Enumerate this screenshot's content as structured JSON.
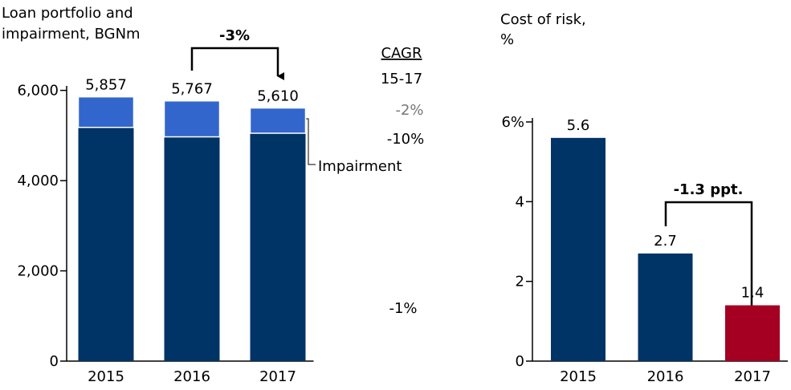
{
  "chart_data": [
    {
      "type": "bar",
      "stacked": true,
      "title": [
        "Loan portfolio and",
        "impairment, BGNm"
      ],
      "categories": [
        "2015",
        "2016",
        "2017"
      ],
      "series": [
        {
          "color": "#003366",
          "values": [
            5180,
            4970,
            5050
          ]
        },
        {
          "name": "Impairment",
          "color": "#3366cc",
          "values": [
            677,
            797,
            560
          ]
        }
      ],
      "totals": [
        5857,
        5767,
        5610
      ],
      "total_labels": [
        "5,857",
        "5,767",
        "5,610"
      ],
      "ylim": [
        0,
        6100
      ],
      "yticks": [
        0,
        {
          "value": 2000,
          "label": "2,000"
        },
        {
          "value": 4000,
          "label": "4,000"
        },
        {
          "value": 6000,
          "label": "6,000"
        }
      ],
      "change_label": "-3%",
      "cagr": {
        "header": "CAGR",
        "period": "15-17",
        "total": "-2%",
        "impairment": "-10%",
        "loans": "-1%"
      }
    },
    {
      "type": "bar",
      "title": [
        "Cost of risk,",
        "%"
      ],
      "categories": [
        "2015",
        "2016",
        "2017"
      ],
      "values": [
        5.6,
        2.7,
        1.4
      ],
      "colors": [
        "#003366",
        "#003366",
        "#a50021"
      ],
      "ylim": [
        0,
        6.1
      ],
      "yticks": [
        0,
        2,
        4,
        {
          "value": 6,
          "label": "6%"
        }
      ],
      "change_label": "-1.3 ppt."
    }
  ]
}
